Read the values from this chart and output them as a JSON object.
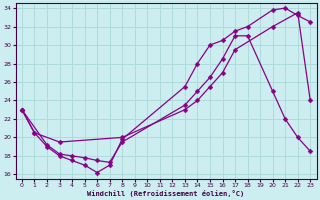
{
  "xlabel": "Windchill (Refroidissement éolien,°C)",
  "background_color": "#cceef0",
  "grid_color": "#aad8d8",
  "line_color": "#880088",
  "xlim": [
    -0.5,
    23.5
  ],
  "ylim": [
    15.5,
    34.5
  ],
  "xticks": [
    0,
    1,
    2,
    3,
    4,
    5,
    6,
    7,
    8,
    9,
    10,
    11,
    12,
    13,
    14,
    15,
    16,
    17,
    18,
    19,
    20,
    21,
    22,
    23
  ],
  "yticks": [
    16,
    18,
    20,
    22,
    24,
    26,
    28,
    30,
    32,
    34
  ],
  "series1_x": [
    0,
    1,
    2,
    3,
    4,
    5,
    6,
    7,
    8,
    13,
    14,
    15,
    16,
    17,
    18,
    20,
    21,
    22,
    23
  ],
  "series1_y": [
    23.0,
    20.5,
    19.0,
    18.0,
    17.5,
    17.0,
    16.2,
    17.0,
    19.8,
    25.5,
    28.0,
    30.0,
    30.5,
    31.5,
    32.0,
    33.8,
    34.0,
    33.2,
    32.5
  ],
  "series2_x": [
    0,
    2,
    3,
    4,
    5,
    6,
    7,
    8,
    13,
    14,
    15,
    16,
    17,
    18,
    20,
    21,
    22,
    23
  ],
  "series2_y": [
    23.0,
    19.2,
    18.2,
    18.0,
    17.8,
    17.5,
    17.3,
    19.5,
    23.5,
    25.0,
    26.5,
    28.5,
    31.0,
    31.0,
    25.0,
    22.0,
    20.0,
    18.5
  ],
  "series3_x": [
    0,
    1,
    3,
    8,
    13,
    14,
    15,
    16,
    17,
    20,
    22,
    23
  ],
  "series3_y": [
    23.0,
    20.5,
    19.5,
    20.0,
    23.0,
    24.0,
    25.5,
    27.0,
    29.5,
    32.0,
    33.5,
    24.0
  ]
}
